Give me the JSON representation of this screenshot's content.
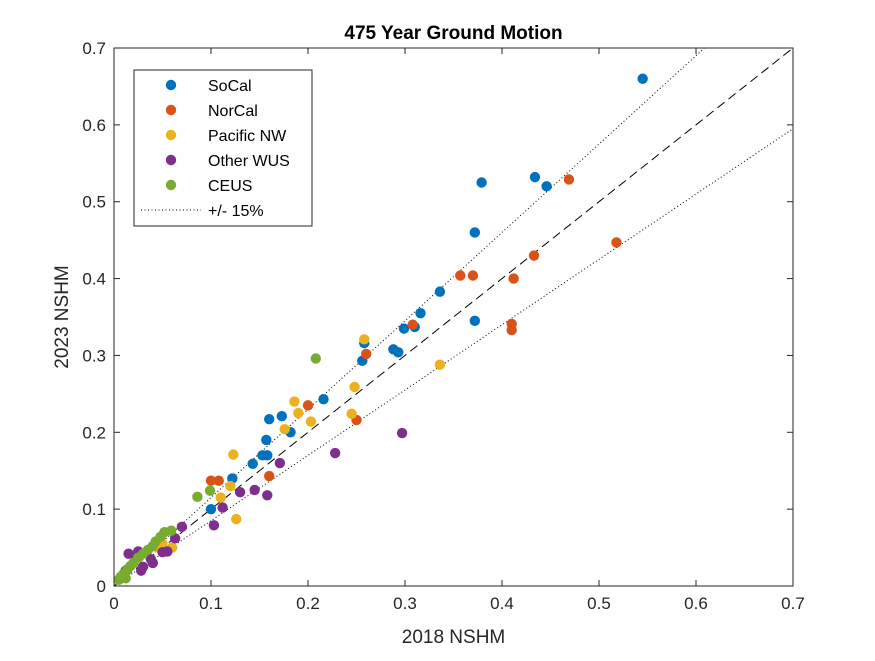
{
  "chart_data": {
    "type": "scatter",
    "title": "475 Year Ground Motion",
    "xlabel": "2018 NSHM",
    "ylabel": "2023 NSHM",
    "xlim": [
      0,
      0.7
    ],
    "ylim": [
      0,
      0.7
    ],
    "xticks": [
      "0",
      "0.1",
      "0.2",
      "0.3",
      "0.4",
      "0.5",
      "0.6",
      "0.7"
    ],
    "yticks": [
      "0",
      "0.1",
      "0.2",
      "0.3",
      "0.4",
      "0.5",
      "0.6",
      "0.7"
    ],
    "grid": false,
    "legend_position": "top-left",
    "series": [
      {
        "name": "SoCal",
        "color": "#0072BD",
        "points": [
          [
            0.545,
            0.66
          ],
          [
            0.434,
            0.532
          ],
          [
            0.446,
            0.52
          ],
          [
            0.379,
            0.525
          ],
          [
            0.372,
            0.46
          ],
          [
            0.372,
            0.345
          ],
          [
            0.336,
            0.383
          ],
          [
            0.316,
            0.355
          ],
          [
            0.31,
            0.337
          ],
          [
            0.299,
            0.335
          ],
          [
            0.288,
            0.308
          ],
          [
            0.293,
            0.304
          ],
          [
            0.258,
            0.316
          ],
          [
            0.256,
            0.293
          ],
          [
            0.216,
            0.243
          ],
          [
            0.173,
            0.221
          ],
          [
            0.16,
            0.217
          ],
          [
            0.157,
            0.19
          ],
          [
            0.182,
            0.2
          ],
          [
            0.158,
            0.17
          ],
          [
            0.153,
            0.17
          ],
          [
            0.143,
            0.159
          ],
          [
            0.122,
            0.14
          ],
          [
            0.1,
            0.1
          ]
        ]
      },
      {
        "name": "NorCal",
        "color": "#D95319",
        "points": [
          [
            0.469,
            0.529
          ],
          [
            0.518,
            0.447
          ],
          [
            0.433,
            0.43
          ],
          [
            0.412,
            0.4
          ],
          [
            0.37,
            0.404
          ],
          [
            0.357,
            0.404
          ],
          [
            0.41,
            0.341
          ],
          [
            0.41,
            0.333
          ],
          [
            0.308,
            0.34
          ],
          [
            0.26,
            0.302
          ],
          [
            0.25,
            0.216
          ],
          [
            0.2,
            0.235
          ],
          [
            0.16,
            0.143
          ],
          [
            0.108,
            0.137
          ],
          [
            0.1,
            0.137
          ]
        ]
      },
      {
        "name": "Pacific NW",
        "color": "#EDB120",
        "points": [
          [
            0.258,
            0.321
          ],
          [
            0.248,
            0.259
          ],
          [
            0.245,
            0.224
          ],
          [
            0.186,
            0.24
          ],
          [
            0.19,
            0.225
          ],
          [
            0.203,
            0.214
          ],
          [
            0.176,
            0.204
          ],
          [
            0.123,
            0.171
          ],
          [
            0.336,
            0.288
          ],
          [
            0.126,
            0.087
          ],
          [
            0.12,
            0.13
          ],
          [
            0.11,
            0.115
          ],
          [
            0.06,
            0.05
          ],
          [
            0.045,
            0.05
          ],
          [
            0.05,
            0.055
          ]
        ]
      },
      {
        "name": "Other WUS",
        "color": "#7E2F8E",
        "points": [
          [
            0.297,
            0.199
          ],
          [
            0.228,
            0.173
          ],
          [
            0.171,
            0.16
          ],
          [
            0.158,
            0.118
          ],
          [
            0.145,
            0.125
          ],
          [
            0.13,
            0.122
          ],
          [
            0.112,
            0.102
          ],
          [
            0.103,
            0.079
          ],
          [
            0.07,
            0.077
          ],
          [
            0.063,
            0.062
          ],
          [
            0.055,
            0.045
          ],
          [
            0.05,
            0.044
          ],
          [
            0.04,
            0.03
          ],
          [
            0.038,
            0.035
          ],
          [
            0.03,
            0.025
          ],
          [
            0.028,
            0.02
          ],
          [
            0.022,
            0.04
          ],
          [
            0.025,
            0.045
          ],
          [
            0.015,
            0.042
          ],
          [
            0.012,
            0.02
          ]
        ]
      },
      {
        "name": "CEUS",
        "color": "#77AC30",
        "points": [
          [
            0.208,
            0.296
          ],
          [
            0.099,
            0.124
          ],
          [
            0.086,
            0.116
          ],
          [
            0.059,
            0.072
          ],
          [
            0.052,
            0.07
          ],
          [
            0.048,
            0.064
          ],
          [
            0.043,
            0.058
          ],
          [
            0.04,
            0.052
          ],
          [
            0.035,
            0.047
          ],
          [
            0.03,
            0.042
          ],
          [
            0.025,
            0.037
          ],
          [
            0.02,
            0.03
          ],
          [
            0.017,
            0.026
          ],
          [
            0.014,
            0.022
          ],
          [
            0.01,
            0.016
          ],
          [
            0.007,
            0.012
          ],
          [
            0.012,
            0.01
          ],
          [
            0.005,
            0.008
          ]
        ]
      }
    ],
    "reference_lines": [
      {
        "name": "+/- 15%",
        "slope": 1.15,
        "style": "dotted",
        "color": "#000000"
      },
      {
        "name": "",
        "slope": 1.0,
        "style": "dashed",
        "color": "#000000"
      },
      {
        "name": "",
        "slope": 0.85,
        "style": "dotted",
        "color": "#000000"
      }
    ]
  }
}
